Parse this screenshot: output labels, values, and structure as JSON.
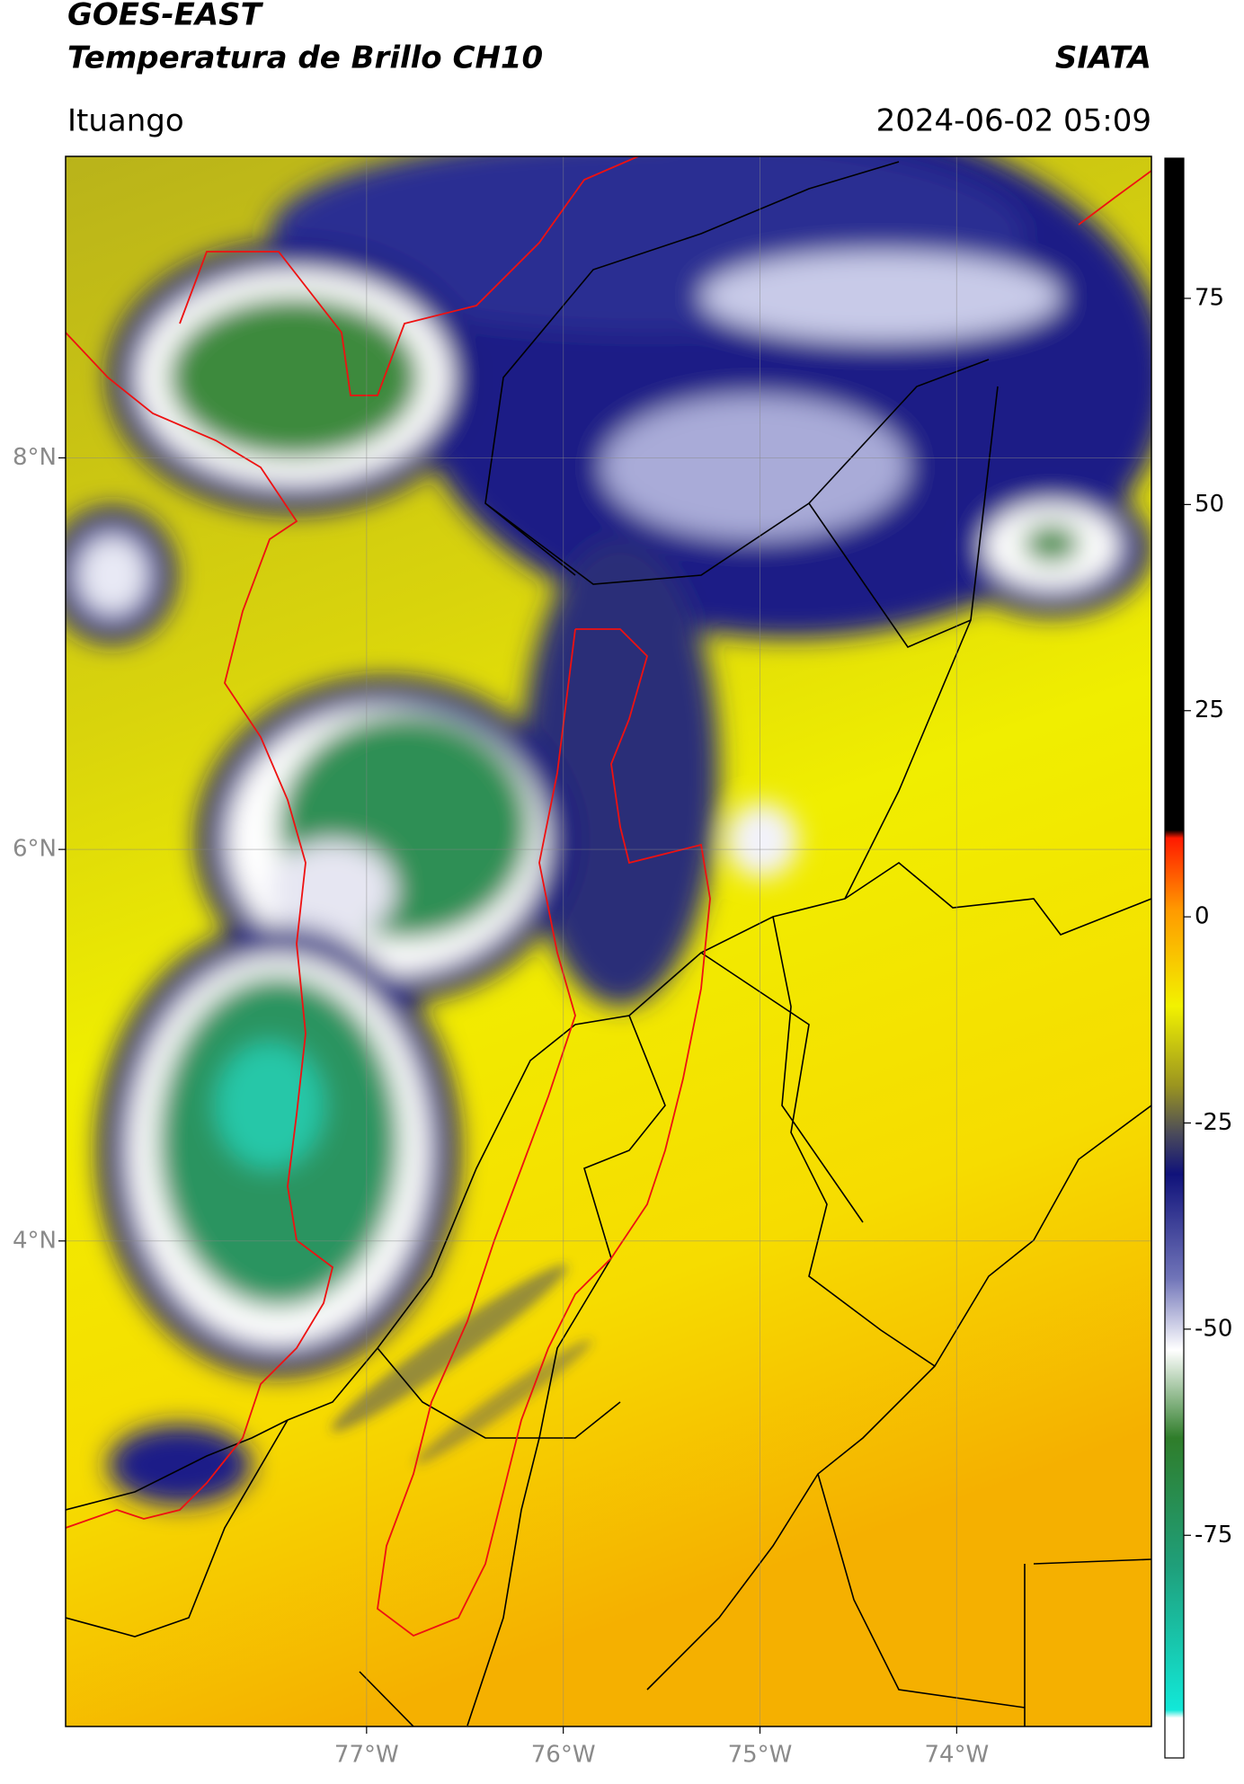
{
  "header": {
    "title": "GOES-EAST",
    "subtitle": "Temperatura de Brillo CH10",
    "brand": "SIATA",
    "location": "Ituango",
    "timestamp": "2024-06-02 05:09"
  },
  "map": {
    "xlim": [
      -78.53,
      -73.01
    ],
    "ylim": [
      1.52,
      9.54
    ],
    "xticks": [
      {
        "value": -77,
        "label": "77°W"
      },
      {
        "value": -76,
        "label": "76°W"
      },
      {
        "value": -75,
        "label": "75°W"
      },
      {
        "value": -74,
        "label": "74°W"
      }
    ],
    "yticks": [
      {
        "value": 4,
        "label": "4°N"
      },
      {
        "value": 6,
        "label": "6°N"
      },
      {
        "value": 8,
        "label": "8°N"
      }
    ],
    "grid": true
  },
  "colorbar": {
    "lim": [
      -102,
      92
    ],
    "ticks": [
      -75,
      -50,
      -25,
      0,
      25,
      50,
      75
    ]
  }
}
